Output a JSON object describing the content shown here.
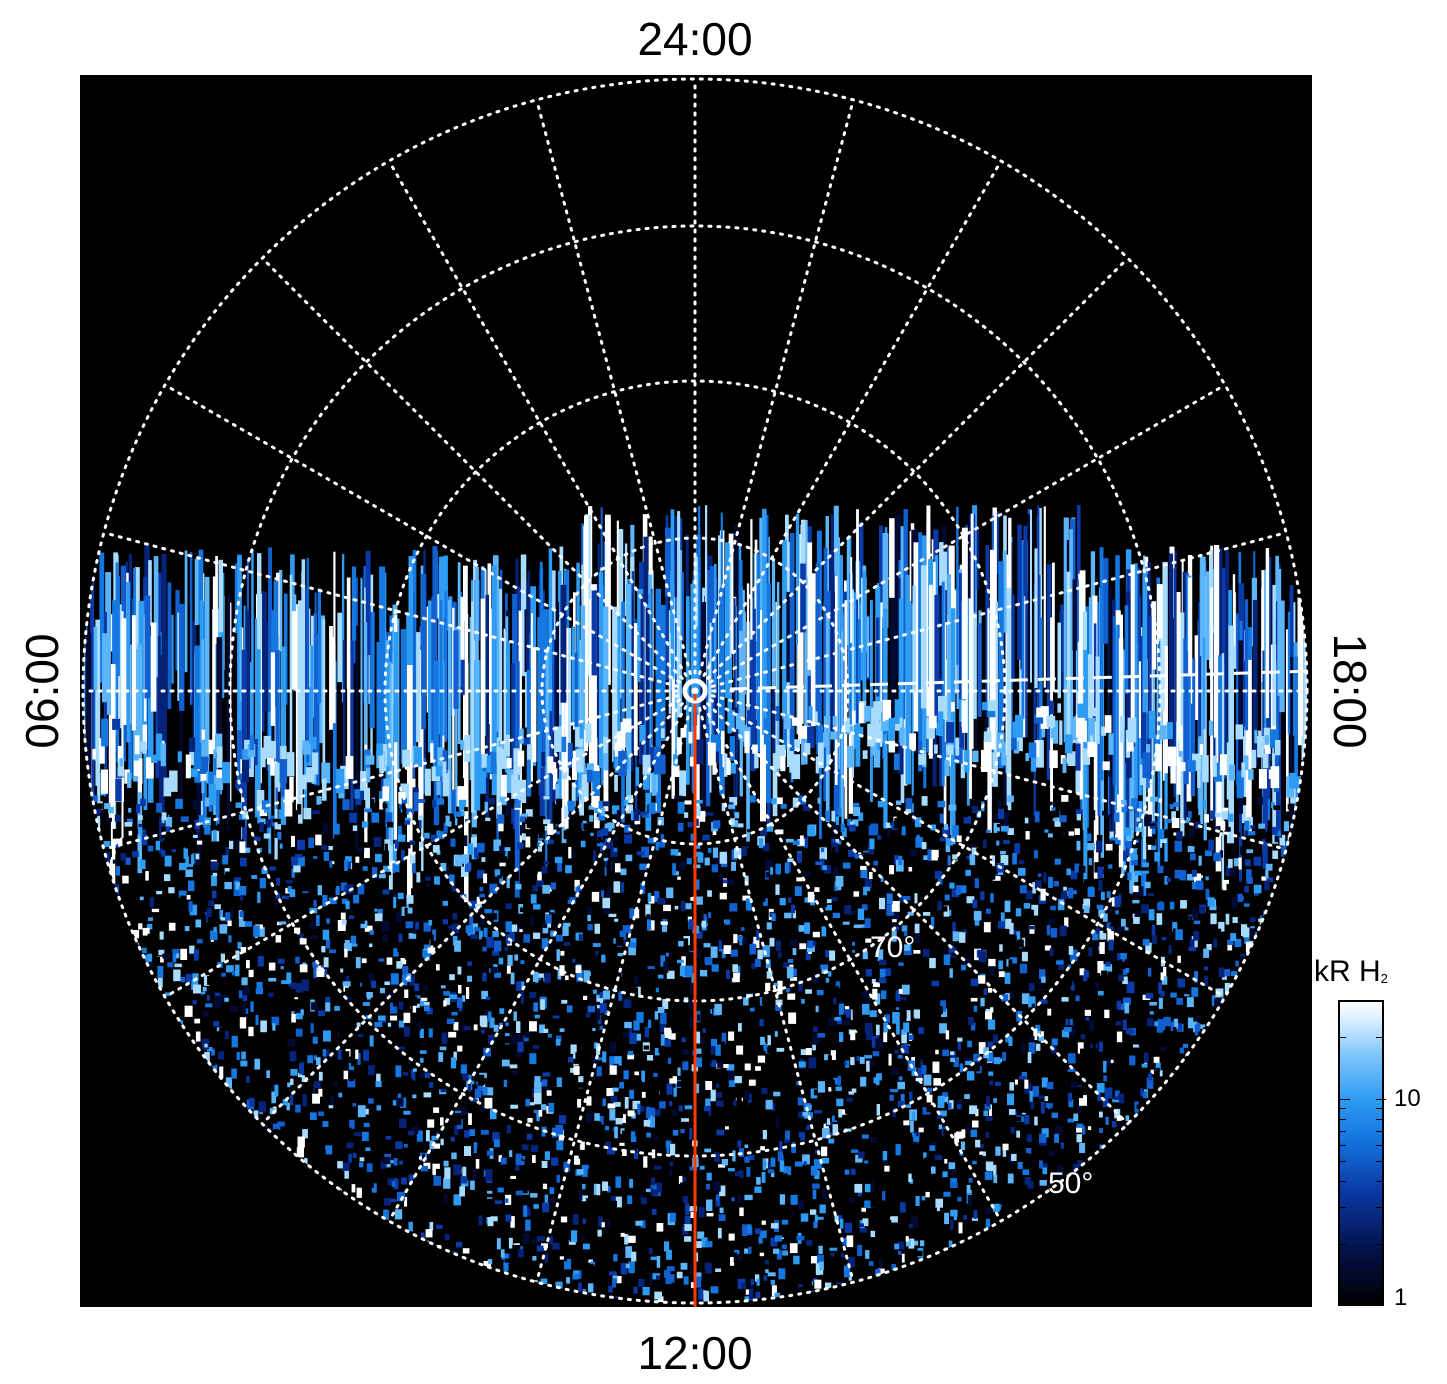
{
  "local_time_labels": {
    "top": "24:00",
    "bottom": "12:00",
    "left": "06:00",
    "right": "18:00"
  },
  "latitude_labels": {
    "inner": "70°",
    "outer": "50°"
  },
  "colorbar": {
    "title_main": "kR H",
    "title_sub": "2",
    "tick_10": "10",
    "tick_1": "1",
    "min": 1,
    "max": 30,
    "scale": "log"
  },
  "colors": {
    "background": "#000000",
    "grid": "#ffffff",
    "meridian": "#ff3a00",
    "emission_low": "#03124a",
    "emission_mid": "#1577e0",
    "emission_high": "#ffffff"
  }
}
